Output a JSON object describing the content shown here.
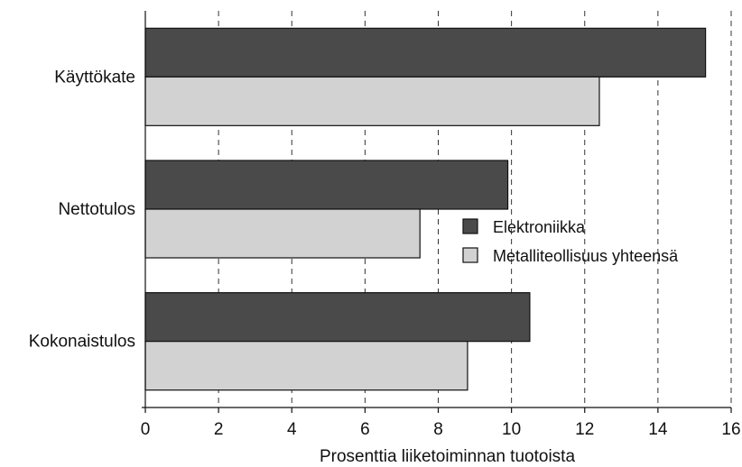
{
  "chart_data": {
    "type": "bar",
    "orientation": "horizontal",
    "categories": [
      "Käyttökate",
      "Nettotulos",
      "Kokonaistulos"
    ],
    "series": [
      {
        "name": "Elektroniikka",
        "values": [
          15.3,
          9.9,
          10.5
        ],
        "color": "#4a4a4a"
      },
      {
        "name": "Metalliteollisuus yhteensä",
        "values": [
          12.4,
          7.5,
          8.8
        ],
        "color": "#d2d2d2"
      }
    ],
    "xlabel": "Prosenttia liiketoiminnan tuotoista",
    "ylabel": "",
    "xlim": [
      0,
      16
    ],
    "xticks": [
      "0",
      "2",
      "4",
      "6",
      "8",
      "10",
      "12",
      "14",
      "16"
    ],
    "grid": "vertical dashed",
    "legend_position": "right-middle"
  }
}
